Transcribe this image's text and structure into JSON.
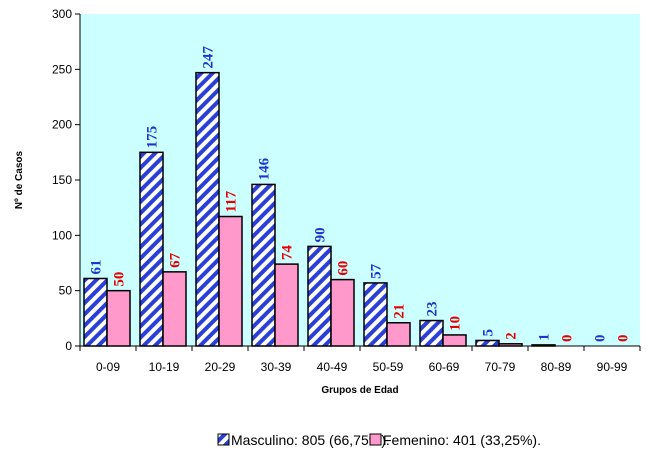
{
  "chart_data": {
    "type": "bar",
    "title": "",
    "xlabel": "Grupos de Edad",
    "ylabel": "Nº de Casos",
    "ylim": [
      0,
      300
    ],
    "yticks": [
      0,
      50,
      100,
      150,
      200,
      250,
      300
    ],
    "categories": [
      "0-09",
      "10-19",
      "20-29",
      "30-39",
      "40-49",
      "50-59",
      "60-69",
      "70-79",
      "80-89",
      "90-99"
    ],
    "series": [
      {
        "name": "Masculino: 805 (66,75%).",
        "values": [
          61,
          175,
          247,
          146,
          90,
          57,
          23,
          5,
          1,
          0
        ],
        "color": "#2a3fd6",
        "label_color": "#2233cc",
        "pattern": "diagonal-stripes"
      },
      {
        "name": "Femenino: 401 (33,25%).",
        "values": [
          50,
          67,
          117,
          74,
          60,
          21,
          10,
          2,
          0,
          0
        ],
        "color": "#ff99cc",
        "label_color": "#e60000",
        "pattern": "solid"
      }
    ],
    "plot_background": "#ccffff",
    "grid": false,
    "legend_position": "bottom"
  }
}
